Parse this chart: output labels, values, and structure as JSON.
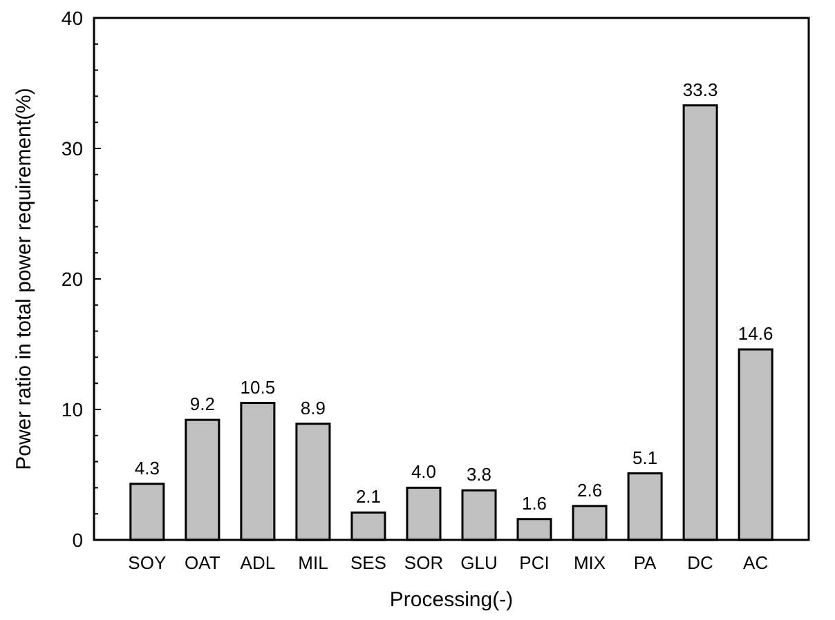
{
  "chart_data": {
    "type": "bar",
    "xlabel": "Processing(-)",
    "ylabel": "Power ratio in total power requirement(%)",
    "categories": [
      "SOY",
      "OAT",
      "ADL",
      "MIL",
      "SES",
      "SOR",
      "GLU",
      "PCI",
      "MIX",
      "PA",
      "DC",
      "AC"
    ],
    "values": [
      4.3,
      9.2,
      10.5,
      8.9,
      2.1,
      4.0,
      3.8,
      1.6,
      2.6,
      5.1,
      33.3,
      14.6
    ],
    "color": "#c0c0c0",
    "value_labels": [
      "4.3",
      "9.2",
      "10.5",
      "8.9",
      "2.1",
      "4.0",
      "3.8",
      "1.6",
      "2.6",
      "5.1",
      "33.3",
      "14.6"
    ],
    "ylim": [
      0,
      40
    ],
    "yticks": [
      0,
      {
        "value": 2,
        "label": null
      },
      {
        "value": 4,
        "label": null
      },
      {
        "value": 6,
        "label": null
      },
      {
        "value": 8,
        "label": null
      },
      10,
      {
        "value": 12,
        "label": null
      },
      {
        "value": 14,
        "label": null
      },
      {
        "value": 16,
        "label": null
      },
      {
        "value": 18,
        "label": null
      },
      20,
      {
        "value": 22,
        "label": null
      },
      {
        "value": 24,
        "label": null
      },
      {
        "value": 26,
        "label": null
      },
      {
        "value": 28,
        "label": null
      },
      30,
      {
        "value": 32,
        "label": null
      },
      {
        "value": 34,
        "label": null
      },
      {
        "value": 36,
        "label": null
      },
      {
        "value": 38,
        "label": null
      },
      40
    ]
  }
}
